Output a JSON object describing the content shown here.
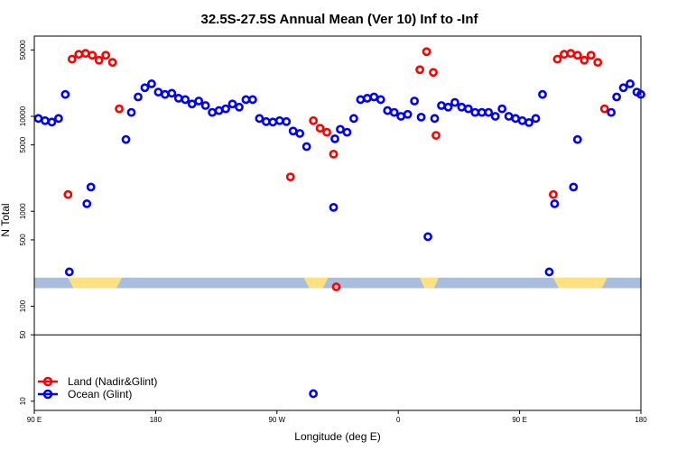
{
  "chart_data": {
    "type": "scatter",
    "title": "32.5S-27.5S Annual Mean (Ver 10)   Inf to -Inf",
    "xlabel": "Longitude (deg E)",
    "ylabel": "N Total",
    "y_scale": "log",
    "xlim": [
      90,
      540
    ],
    "ylim": [
      8,
      70000
    ],
    "x_ticks": [
      {
        "value": 90,
        "label": "90 E"
      },
      {
        "value": 180,
        "label": "180"
      },
      {
        "value": 270,
        "label": "90 W"
      },
      {
        "value": 360,
        "label": "0"
      },
      {
        "value": 450,
        "label": "90 E"
      },
      {
        "value": 540,
        "label": "180"
      }
    ],
    "y_ticks": [
      {
        "value": 10,
        "label": "10"
      },
      {
        "value": 50,
        "label": "50"
      },
      {
        "value": 100,
        "label": "100"
      },
      {
        "value": 500,
        "label": "500"
      },
      {
        "value": 1000,
        "label": "1000"
      },
      {
        "value": 5000,
        "label": "5000"
      },
      {
        "value": 10000,
        "label": "10000"
      },
      {
        "value": 50000,
        "label": "50000"
      }
    ],
    "reference_line_y": 50,
    "land_ocean_strip": {
      "y_range": [
        155,
        200
      ],
      "ocean_color": "#a8bedc",
      "land_color": "#ffe082",
      "land_segments": [
        [
          115,
          155
        ],
        [
          290,
          308
        ],
        [
          376,
          390
        ],
        [
          475,
          515
        ]
      ]
    },
    "legend": [
      {
        "label": "Land (Nadir&Glint)",
        "color": "#ff0000"
      },
      {
        "label": "Ocean (Glint)",
        "color": "#0000ff"
      }
    ],
    "series": [
      {
        "name": "Land (Nadir&Glint)",
        "color": "#ff0000",
        "x": [
          115,
          118,
          123,
          128,
          133,
          138,
          143,
          148,
          153,
          280,
          297,
          302,
          307,
          312,
          314,
          376,
          381,
          386,
          388,
          475,
          478,
          483,
          488,
          493,
          498,
          503,
          508,
          513
        ],
        "y": [
          1500,
          40000,
          45000,
          46000,
          44000,
          39000,
          44000,
          37000,
          12000,
          2300,
          9000,
          7500,
          6800,
          4000,
          160,
          31000,
          48000,
          29000,
          6300,
          1500,
          40000,
          45000,
          46000,
          44000,
          39000,
          44000,
          37000,
          12000
        ]
      },
      {
        "name": "Ocean (Glint)",
        "color": "#0000ff",
        "x": [
          93,
          98,
          103,
          108,
          113,
          116,
          129,
          132,
          158,
          162,
          167,
          172,
          177,
          182,
          187,
          192,
          197,
          202,
          207,
          212,
          217,
          222,
          227,
          232,
          237,
          242,
          247,
          252,
          257,
          262,
          267,
          272,
          277,
          282,
          287,
          292,
          297,
          312,
          313,
          317,
          322,
          327,
          332,
          337,
          342,
          347,
          352,
          357,
          362,
          367,
          372,
          377,
          382,
          387,
          392,
          397,
          402,
          407,
          412,
          417,
          422,
          427,
          432,
          437,
          442,
          447,
          452,
          457,
          462,
          467,
          472,
          476,
          490,
          493,
          518,
          522,
          527,
          532,
          537,
          540
        ],
        "y": [
          9500,
          9000,
          8700,
          9500,
          17000,
          230,
          1200,
          1800,
          5700,
          11000,
          16000,
          20000,
          22000,
          18000,
          17000,
          17500,
          15500,
          15000,
          13500,
          14500,
          13000,
          11000,
          11500,
          12000,
          13500,
          12500,
          15000,
          15000,
          9500,
          8800,
          8700,
          9000,
          8800,
          7000,
          6600,
          4800,
          12,
          1100,
          5800,
          7300,
          6800,
          9500,
          15000,
          15500,
          16000,
          15000,
          11500,
          11000,
          10000,
          10500,
          14500,
          9800,
          540,
          9500,
          13000,
          12500,
          14000,
          12500,
          12000,
          11000,
          11000,
          11000,
          10000,
          12000,
          10000,
          9500,
          9000,
          8600,
          9500,
          17000,
          230,
          1200,
          1800,
          5700,
          11000,
          16000,
          20000,
          22000,
          18000,
          17000
        ]
      }
    ]
  }
}
